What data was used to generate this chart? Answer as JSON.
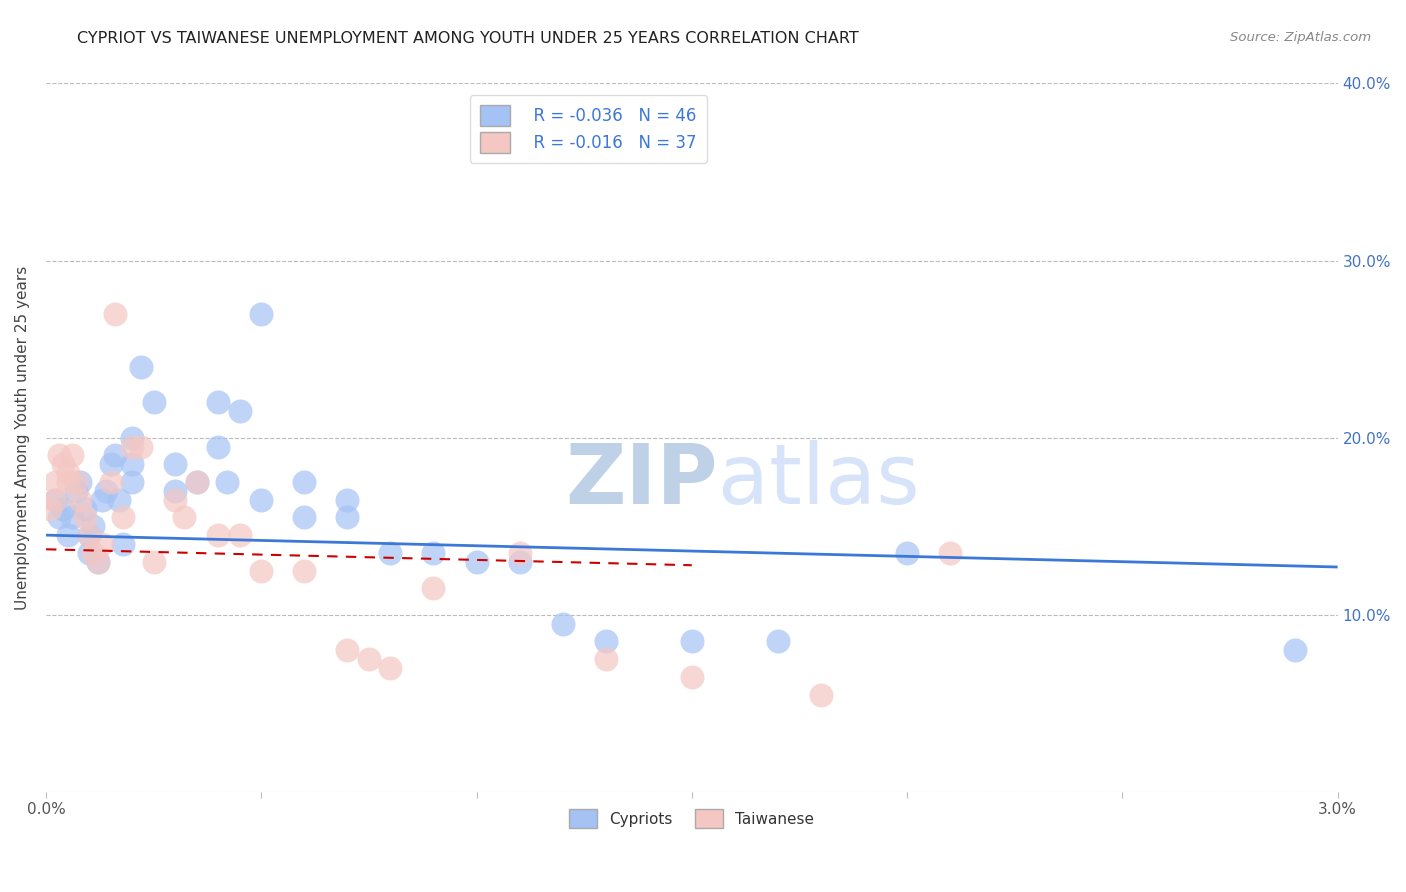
{
  "title": "CYPRIOT VS TAIWANESE UNEMPLOYMENT AMONG YOUTH UNDER 25 YEARS CORRELATION CHART",
  "source": "Source: ZipAtlas.com",
  "ylabel": "Unemployment Among Youth under 25 years",
  "xmin": 0.0,
  "xmax": 0.03,
  "ymin": 0.0,
  "ymax": 0.4,
  "xticks": [
    0.0,
    0.005,
    0.01,
    0.015,
    0.02,
    0.025,
    0.03
  ],
  "xtick_labels": [
    "0.0%",
    "",
    "",
    "",
    "",
    "",
    "3.0%"
  ],
  "ytick_positions": [
    0.0,
    0.1,
    0.2,
    0.3,
    0.4
  ],
  "ytick_labels_right": [
    "",
    "10.0%",
    "20.0%",
    "30.0%",
    "40.0%"
  ],
  "legend_label1": "Cypriots",
  "legend_label2": "Taiwanese",
  "R1": -0.036,
  "N1": 46,
  "R2": -0.016,
  "N2": 37,
  "blue_color": "#a4c2f4",
  "pink_color": "#f4c7c3",
  "blue_line_color": "#3c78d8",
  "pink_line_color": "#cc0000",
  "watermark_color": "#c9daf8",
  "watermark_zip": "ZIP",
  "watermark_atlas": "atlas",
  "cypriot_x": [
    0.0002,
    0.0003,
    0.0004,
    0.0005,
    0.0006,
    0.0007,
    0.0008,
    0.0009,
    0.001,
    0.001,
    0.0011,
    0.0012,
    0.0013,
    0.0014,
    0.0015,
    0.0016,
    0.0017,
    0.0018,
    0.002,
    0.002,
    0.002,
    0.0022,
    0.0025,
    0.003,
    0.003,
    0.0035,
    0.004,
    0.004,
    0.0042,
    0.0045,
    0.005,
    0.005,
    0.006,
    0.006,
    0.007,
    0.007,
    0.008,
    0.009,
    0.01,
    0.011,
    0.012,
    0.013,
    0.015,
    0.017,
    0.02,
    0.029
  ],
  "cypriot_y": [
    0.165,
    0.155,
    0.16,
    0.145,
    0.155,
    0.17,
    0.175,
    0.16,
    0.145,
    0.135,
    0.15,
    0.13,
    0.165,
    0.17,
    0.185,
    0.19,
    0.165,
    0.14,
    0.185,
    0.175,
    0.2,
    0.24,
    0.22,
    0.17,
    0.185,
    0.175,
    0.22,
    0.195,
    0.175,
    0.215,
    0.27,
    0.165,
    0.155,
    0.175,
    0.155,
    0.165,
    0.135,
    0.135,
    0.13,
    0.13,
    0.095,
    0.085,
    0.085,
    0.085,
    0.135,
    0.08
  ],
  "taiwanese_x": [
    0.0001,
    0.0002,
    0.0002,
    0.0003,
    0.0004,
    0.0005,
    0.0005,
    0.0006,
    0.0007,
    0.0008,
    0.0009,
    0.001,
    0.0011,
    0.0012,
    0.0013,
    0.0015,
    0.0016,
    0.0018,
    0.002,
    0.0022,
    0.0025,
    0.003,
    0.0032,
    0.0035,
    0.004,
    0.0045,
    0.005,
    0.006,
    0.007,
    0.0075,
    0.008,
    0.009,
    0.011,
    0.013,
    0.015,
    0.018,
    0.021
  ],
  "taiwanese_y": [
    0.16,
    0.175,
    0.165,
    0.19,
    0.185,
    0.18,
    0.175,
    0.19,
    0.175,
    0.165,
    0.155,
    0.145,
    0.135,
    0.13,
    0.14,
    0.175,
    0.27,
    0.155,
    0.195,
    0.195,
    0.13,
    0.165,
    0.155,
    0.175,
    0.145,
    0.145,
    0.125,
    0.125,
    0.08,
    0.075,
    0.07,
    0.115,
    0.135,
    0.075,
    0.065,
    0.055,
    0.135
  ],
  "blue_trend_x": [
    0.0,
    0.03
  ],
  "blue_trend_y": [
    0.145,
    0.127
  ],
  "pink_trend_x": [
    0.0,
    0.015
  ],
  "pink_trend_y": [
    0.137,
    0.128
  ]
}
